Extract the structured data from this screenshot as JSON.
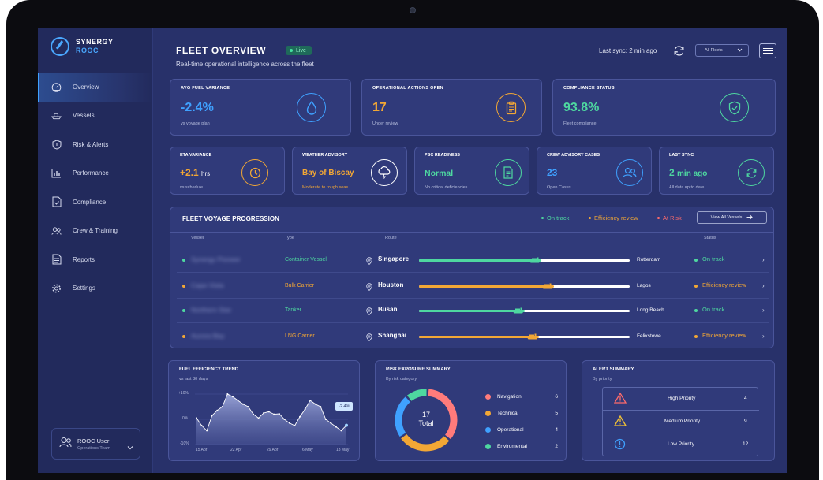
{
  "app": {
    "brand_line1": "SYNERGY",
    "brand_line2": "ROOC"
  },
  "sidebar": {
    "items": [
      {
        "label": "Overview",
        "icon": "dashboard-icon",
        "active": true
      },
      {
        "label": "Vessels",
        "icon": "ship-icon"
      },
      {
        "label": "Risk & Alerts",
        "icon": "shield-alert-icon"
      },
      {
        "label": "Performance",
        "icon": "bar-chart-icon"
      },
      {
        "label": "Compliance",
        "icon": "document-check-icon"
      },
      {
        "label": "Crew & Training",
        "icon": "users-icon"
      },
      {
        "label": "Reports",
        "icon": "report-icon"
      },
      {
        "label": "Settings",
        "icon": "gear-icon"
      }
    ],
    "user": {
      "name": "ROOC User",
      "role": "Operations Team"
    }
  },
  "header": {
    "title": "FLEET OVERVIEW",
    "live_badge": "Live",
    "subtitle": "Real-time operational intelligence across the fleet",
    "last_sync": "Last sync: 2 min ago",
    "fleet_select": "All Fleets"
  },
  "kpis": [
    {
      "label": "AVG FUEL VARIANCE",
      "value": "-2.4%",
      "sub": "vs voyage plan",
      "color": "#3fa1ff",
      "icon": "fuel-drop-icon"
    },
    {
      "label": "OPERATIONAL ACTIONS OPEN",
      "value": "17",
      "sub": "Under review",
      "color": "#f2a735",
      "icon": "clipboard-icon"
    },
    {
      "label": "COMPLIANCE STATUS",
      "value": "93.8%",
      "sub": "Fleet compliance",
      "color": "#4ed8a0",
      "icon": "shield-check-icon"
    }
  ],
  "stats": [
    {
      "label": "ETA VARIANCE",
      "value": "+2.1",
      "unit": "hrs",
      "sub": "vs schedule",
      "color": "#f2a735",
      "icon": "clock-icon"
    },
    {
      "label": "WEATHER ADVISORY",
      "value": "Bay of Biscay",
      "unit": "",
      "sub": "Moderate to rough seas",
      "color": "#f2a735",
      "icon": "storm-cloud-icon"
    },
    {
      "label": "PSC READINESS",
      "value": "Normal",
      "unit": "",
      "sub": "No critical deficiencies",
      "color": "#4ed8a0",
      "icon": "document-icon"
    },
    {
      "label": "CREW ADVISORY CASES",
      "value": "23",
      "unit": "",
      "sub": "Open Cases",
      "color": "#3fa1ff",
      "icon": "users-icon"
    },
    {
      "label": "LAST SYNC",
      "value": "2",
      "unit": "min ago",
      "sub": "All data up to date",
      "color": "#4ed8a0",
      "icon": "sync-icon"
    }
  ],
  "voyage": {
    "title": "FLEET VOYAGE PROGRESSION",
    "legend": [
      {
        "label": "On track",
        "color": "#4ed8a0"
      },
      {
        "label": "Efficiency review",
        "color": "#f2a735"
      },
      {
        "label": "At Risk",
        "color": "#ff6b6b"
      }
    ],
    "view_all": "View All Vessels",
    "columns": {
      "vessel": "Vessel",
      "type": "Type",
      "route": "Route",
      "status": "Status"
    },
    "rows": [
      {
        "vessel": "Synergy Pioneer",
        "type": "Container Vessel",
        "from": "Singapore",
        "to": "Rotterdam",
        "progress": 0.58,
        "status": "On track",
        "color": "#4ed8a0"
      },
      {
        "vessel": "Cape Vista",
        "type": "Bulk Carrier",
        "from": "Houston",
        "to": "Lagos",
        "progress": 0.64,
        "status": "Efficiency review",
        "color": "#f2a735"
      },
      {
        "vessel": "Northern Star",
        "type": "Tanker",
        "from": "Busan",
        "to": "Long Beach",
        "progress": 0.5,
        "status": "On track",
        "color": "#4ed8a0"
      },
      {
        "vessel": "Aurora Bay",
        "type": "LNG Carrier",
        "from": "Shanghai",
        "to": "Felixstowe",
        "progress": 0.57,
        "status": "Efficiency review",
        "color": "#f2a735"
      }
    ]
  },
  "fuel_trend": {
    "title": "FUEL EFFICIENCY TREND",
    "sub": "vs last 30 days",
    "y_ticks": [
      "+10%",
      "0%",
      "-10%"
    ],
    "x_ticks": [
      "15 Apr",
      "22 Apr",
      "29 Apr",
      "6 May",
      "13 May"
    ],
    "end_label": "-2.4%"
  },
  "chart_data": {
    "type": "area",
    "title": "FUEL EFFICIENCY TREND",
    "subtitle": "vs last 30 days",
    "ylim": [
      -10,
      10
    ],
    "y_ticks": [
      "+10%",
      "0%",
      "-10%"
    ],
    "x_ticks": [
      "15 Apr",
      "22 Apr",
      "29 Apr",
      "6 May",
      "13 May"
    ],
    "values": [
      0.5,
      -2.5,
      -4.5,
      1.5,
      3.5,
      5,
      10,
      9,
      7.5,
      6,
      5,
      2,
      0.5,
      2.5,
      3,
      2,
      2.2,
      0,
      -1.5,
      -2.5,
      1,
      4,
      7.5,
      6,
      5,
      0,
      -1.5,
      -3,
      -4.5,
      -2.4
    ]
  },
  "risk": {
    "title": "RISK EXPOSURE SUMMARY",
    "sub": "By risk category",
    "total": "17",
    "total_label": "Total",
    "categories": [
      {
        "label": "Navigation",
        "count": "6",
        "value": 6,
        "color": "#ff7b7b"
      },
      {
        "label": "Technical",
        "count": "5",
        "value": 5,
        "color": "#f2a735"
      },
      {
        "label": "Operational",
        "count": "4",
        "value": 4,
        "color": "#3fa1ff"
      },
      {
        "label": "Enviromental",
        "count": "2",
        "value": 2,
        "color": "#4ed8a0"
      }
    ]
  },
  "alerts": {
    "title": "ALERT SUMMARY",
    "sub": "By priority",
    "rows": [
      {
        "label": "High Priority",
        "count": "4",
        "color": "#ff6b6b",
        "icon": "warning-triangle-icon"
      },
      {
        "label": "Medium Priority",
        "count": "9",
        "color": "#f2c235",
        "icon": "warning-triangle-icon"
      },
      {
        "label": "Low Priority",
        "count": "12",
        "color": "#3fa1ff",
        "icon": "info-circle-icon"
      }
    ]
  }
}
